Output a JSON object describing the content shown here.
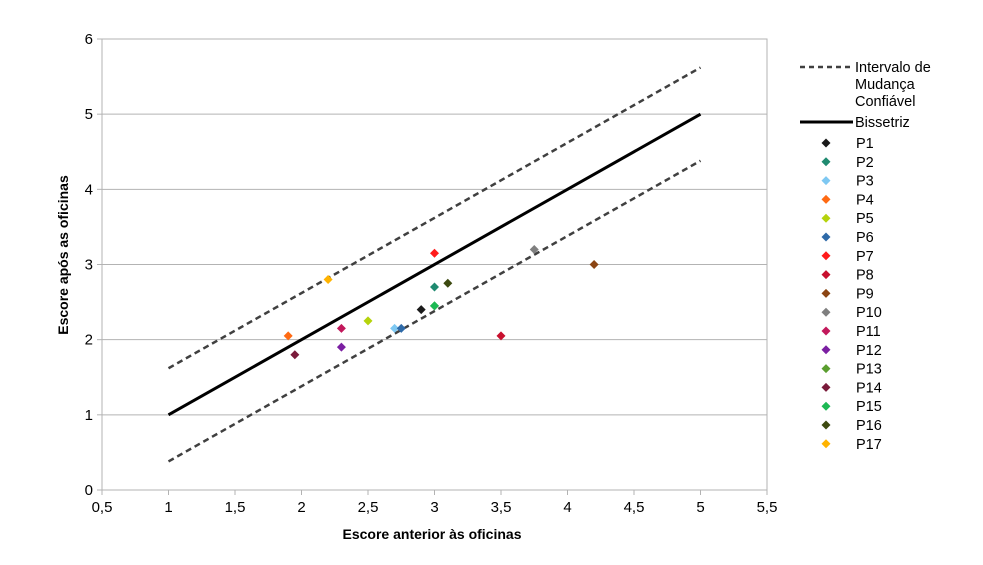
{
  "chart_data": {
    "type": "scatter",
    "title": "",
    "xlabel": "Escore anterior às oficinas",
    "ylabel": "Escore após as oficinas",
    "xlim": [
      0.5,
      5.5
    ],
    "ylim": [
      0,
      6
    ],
    "xticks": [
      "0,5",
      "1",
      "1,5",
      "2",
      "2,5",
      "3",
      "3,5",
      "4",
      "4,5",
      "5",
      "5,5"
    ],
    "yticks": [
      "0",
      "1",
      "2",
      "3",
      "4",
      "5",
      "6"
    ],
    "grid": "horizontal",
    "legend_position": "right",
    "lines": [
      {
        "name": "Intervalo de Mudança Confiável",
        "legend_lines": [
          "Intervalo de",
          "Mudança",
          "Confiável"
        ],
        "style": "dashed",
        "color": "#404040",
        "x": [
          1,
          5
        ],
        "y": [
          1.62,
          5.62
        ]
      },
      {
        "name": "Intervalo de Mudança Confiável",
        "legend": false,
        "style": "dashed",
        "color": "#404040",
        "x": [
          1,
          5
        ],
        "y": [
          0.38,
          4.38
        ]
      },
      {
        "name": "Bissetriz",
        "legend_lines": [
          "Bissetriz"
        ],
        "style": "solid",
        "color": "#000000",
        "x": [
          1,
          5
        ],
        "y": [
          1,
          5
        ]
      }
    ],
    "series": [
      {
        "name": "P1",
        "color": "#1a1a1a",
        "x": 2.9,
        "y": 2.4
      },
      {
        "name": "P2",
        "color": "#1f8a70",
        "x": 3.0,
        "y": 2.7
      },
      {
        "name": "P3",
        "color": "#7ec8f2",
        "x": 2.7,
        "y": 2.15
      },
      {
        "name": "P4",
        "color": "#ff6a13",
        "x": 1.9,
        "y": 2.05
      },
      {
        "name": "P5",
        "color": "#b5d30c",
        "x": 2.5,
        "y": 2.25
      },
      {
        "name": "P6",
        "color": "#2e6aa8",
        "x": 2.75,
        "y": 2.15
      },
      {
        "name": "P7",
        "color": "#ff1a1a",
        "x": 3.0,
        "y": 3.15
      },
      {
        "name": "P8",
        "color": "#c8102e",
        "x": 3.5,
        "y": 2.05
      },
      {
        "name": "P9",
        "color": "#8b4513",
        "x": 4.2,
        "y": 3.0
      },
      {
        "name": "P10",
        "color": "#7f7f7f",
        "x": 3.75,
        "y": 3.2
      },
      {
        "name": "P11",
        "color": "#c2185b",
        "x": 2.3,
        "y": 2.15
      },
      {
        "name": "P12",
        "color": "#7b1fa2",
        "x": 2.3,
        "y": 1.9
      },
      {
        "name": "P13",
        "color": "#5a9e2f",
        "x": 3.0,
        "y": 2.45
      },
      {
        "name": "P14",
        "color": "#7a1a3a",
        "x": 1.95,
        "y": 1.8
      },
      {
        "name": "P15",
        "color": "#1db954",
        "x": 3.0,
        "y": 2.45
      },
      {
        "name": "P16",
        "color": "#3d4a10",
        "x": 3.1,
        "y": 2.75
      },
      {
        "name": "P17",
        "color": "#ffb300",
        "x": 2.2,
        "y": 2.8
      }
    ]
  }
}
